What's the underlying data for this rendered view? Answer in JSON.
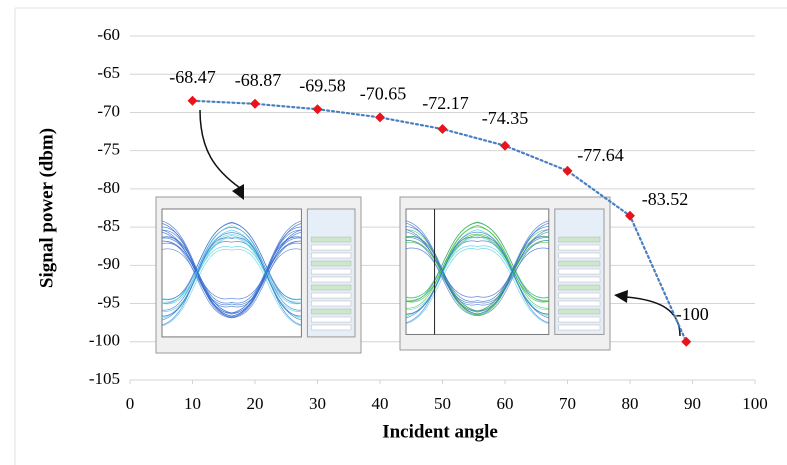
{
  "chart_data": {
    "type": "line",
    "xlabel": "Incident angle",
    "ylabel": "Signal power (dbm)",
    "x": [
      10,
      20,
      30,
      40,
      50,
      60,
      70,
      80,
      89
    ],
    "values": [
      -68.47,
      -68.87,
      -69.58,
      -70.65,
      -72.17,
      -74.35,
      -77.64,
      -83.52,
      -100
    ],
    "color": "#4a7fc1",
    "marker_color": "#e8141c",
    "xlim": [
      0,
      100
    ],
    "xticks": [
      0,
      10,
      20,
      30,
      40,
      50,
      60,
      70,
      80,
      90,
      100
    ],
    "ylim": [
      -105,
      -60
    ],
    "yticks": [
      -105,
      -100,
      -95,
      -90,
      -85,
      -80,
      -75,
      -70,
      -65,
      -60
    ],
    "grid": true
  }
}
